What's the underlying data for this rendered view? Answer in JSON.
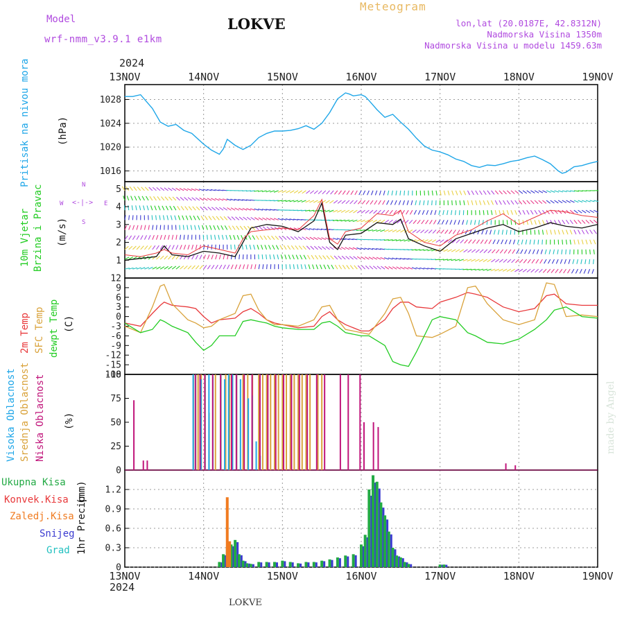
{
  "header": {
    "model_label": "Model",
    "model_name": "wrf-nmm_v3.9.1 e1km",
    "station": "LOKVE",
    "meteogram_label": "Meteogram",
    "lonlat": "lon,lat (20.0187E, 42.8312N)",
    "altitude": "Nadmorska Visina 1350m",
    "model_altitude": "Nadmorska Visina u modelu 1459.63m",
    "year_top": "2024",
    "year_bottom": "2024",
    "footer_station": "LOKVE",
    "credit": "made by Angel"
  },
  "colors": {
    "pressure": "#1ea6e8",
    "temp2m": "#e8383a",
    "sfc": "#d9a23a",
    "dew": "#22cc22",
    "high_cloud": "#1ea6e8",
    "mid_cloud": "#d9a23a",
    "low_cloud": "#c0147a",
    "total_precip": "#22aa44",
    "conv_precip": "#e8383a",
    "frz_precip": "#f07b20",
    "snow": "#3a3ad0",
    "hail": "#22c0c0",
    "violet": "#b04adf",
    "title_orange": "#e8b860"
  },
  "x_axis": {
    "start": "13NOV",
    "days": [
      "13NOV",
      "14NOV",
      "15NOV",
      "16NOV",
      "17NOV",
      "18NOV",
      "19NOV"
    ]
  },
  "chart_data": [
    {
      "type": "line",
      "panel": "pressure",
      "ylabel": "Pritisak na nivou mora",
      "unit": "(hPa)",
      "yticks": [
        1016,
        1020,
        1024,
        1028
      ],
      "ylim": [
        1014.2,
        1030.5
      ],
      "x": [
        0,
        0.1,
        0.2,
        0.35,
        0.45,
        0.55,
        0.65,
        0.75,
        0.85,
        1.0,
        1.1,
        1.2,
        1.25,
        1.3,
        1.4,
        1.5,
        1.6,
        1.7,
        1.8,
        1.9,
        2.0,
        2.1,
        2.2,
        2.3,
        2.4,
        2.5,
        2.6,
        2.7,
        2.8,
        2.85,
        2.9,
        3.0,
        3.05,
        3.1,
        3.2,
        3.3,
        3.4,
        3.5,
        3.6,
        3.7,
        3.8,
        3.9,
        4.0,
        4.1,
        4.2,
        4.3,
        4.4,
        4.5,
        4.6,
        4.7,
        4.8,
        4.9,
        5.0,
        5.1,
        5.2,
        5.3,
        5.4,
        5.5,
        5.55,
        5.6,
        5.7,
        5.8,
        5.9,
        6.0
      ],
      "series": [
        {
          "values": [
            1028.5,
            1028.5,
            1028.8,
            1026.5,
            1024.2,
            1023.5,
            1023.8,
            1022.8,
            1022.3,
            1020.5,
            1019.5,
            1018.8,
            1019.7,
            1021.3,
            1020.3,
            1019.6,
            1020.3,
            1021.6,
            1022.3,
            1022.7,
            1022.7,
            1022.8,
            1023.1,
            1023.6,
            1023.0,
            1024.0,
            1025.8,
            1028.1,
            1029.1,
            1028.9,
            1028.6,
            1028.8,
            1028.5,
            1027.8,
            1026.3,
            1025.0,
            1025.5,
            1024.2,
            1023.0,
            1021.5,
            1020.2,
            1019.5,
            1019.2,
            1018.7,
            1018.0,
            1017.6,
            1016.9,
            1016.6,
            1017.0,
            1016.9,
            1017.2,
            1017.6,
            1017.8,
            1018.2,
            1018.5,
            1017.9,
            1017.2,
            1016.0,
            1015.6,
            1015.8,
            1016.7,
            1016.9,
            1017.3,
            1017.6
          ]
        }
      ]
    },
    {
      "type": "line",
      "panel": "wind",
      "ylabel": [
        "10m Vjetar",
        "Brzina i Pravac"
      ],
      "unit": "(m/s)",
      "compass": [
        "N",
        "W",
        "E",
        "S"
      ],
      "yticks": [
        1,
        2,
        3,
        4,
        5
      ],
      "ylim": [
        0,
        5.4
      ],
      "x": [
        0,
        0.2,
        0.4,
        0.5,
        0.6,
        0.8,
        1.0,
        1.2,
        1.4,
        1.5,
        1.6,
        1.8,
        2.0,
        2.2,
        2.4,
        2.5,
        2.6,
        2.7,
        2.8,
        3.0,
        3.2,
        3.4,
        3.5,
        3.6,
        3.8,
        4.0,
        4.2,
        4.4,
        4.6,
        4.8,
        5.0,
        5.2,
        5.4,
        5.6,
        5.8,
        6.0
      ],
      "series": [
        {
          "name": "speed",
          "values": [
            1.0,
            1.1,
            1.2,
            1.8,
            1.3,
            1.2,
            1.5,
            1.4,
            1.2,
            2.0,
            2.8,
            3.0,
            2.9,
            2.6,
            3.2,
            4.2,
            2.0,
            1.6,
            2.4,
            2.5,
            3.1,
            3.0,
            3.3,
            2.2,
            1.8,
            1.5,
            2.2,
            2.5,
            2.8,
            3.0,
            2.6,
            2.8,
            3.1,
            2.9,
            2.8,
            3.0
          ]
        },
        {
          "name": "gust",
          "values": [
            1.3,
            1.2,
            1.4,
            1.6,
            1.4,
            1.3,
            1.8,
            1.6,
            1.4,
            2.2,
            2.6,
            2.7,
            2.8,
            2.7,
            3.5,
            4.4,
            2.2,
            1.9,
            2.6,
            2.8,
            3.6,
            3.5,
            3.8,
            2.6,
            2.0,
            1.8,
            2.4,
            2.7,
            3.2,
            3.6,
            3.0,
            3.4,
            3.8,
            3.7,
            3.5,
            3.4
          ]
        }
      ]
    },
    {
      "type": "line",
      "panel": "temperature",
      "ylabel": [
        "2m Temp",
        "SFC Temp",
        "dewpt Temp"
      ],
      "unit": "(C)",
      "yticks": [
        -18,
        -15,
        -12,
        -9,
        -6,
        -3,
        0,
        3,
        6,
        9,
        12
      ],
      "ylim": [
        -18,
        12
      ],
      "x": [
        0,
        0.2,
        0.35,
        0.45,
        0.5,
        0.6,
        0.8,
        0.9,
        1.0,
        1.1,
        1.2,
        1.4,
        1.5,
        1.6,
        1.7,
        1.8,
        1.9,
        2.0,
        2.2,
        2.4,
        2.5,
        2.6,
        2.7,
        2.8,
        3.0,
        3.1,
        3.3,
        3.4,
        3.5,
        3.6,
        3.7,
        3.9,
        4.0,
        4.2,
        4.35,
        4.45,
        4.6,
        4.8,
        5.0,
        5.2,
        5.35,
        5.45,
        5.6,
        5.8,
        6.0
      ],
      "series": [
        {
          "name": "2m Temp",
          "values": [
            -2,
            -3,
            1,
            3.5,
            4.5,
            3.5,
            3,
            2.5,
            0,
            -2,
            -1,
            -0.5,
            1.5,
            2.5,
            1,
            -1,
            -2,
            -2.5,
            -3.5,
            -3,
            0,
            1.5,
            -1,
            -2.5,
            -4.5,
            -4.5,
            -1,
            2.5,
            4.5,
            4.5,
            3,
            2.5,
            4.5,
            6,
            7.5,
            7,
            6,
            3,
            1.5,
            2.5,
            6.5,
            7,
            4,
            3.5,
            3.5
          ]
        },
        {
          "name": "SFC Temp",
          "values": [
            -3,
            -5,
            3,
            9.5,
            10,
            4,
            -1,
            -2,
            -3.5,
            -3,
            -1,
            1,
            6.5,
            7,
            2,
            -1,
            -2.5,
            -2.5,
            -3,
            -1,
            3,
            3.5,
            -1,
            -4,
            -5,
            -5.5,
            1,
            5.5,
            6,
            1,
            -6,
            -6.5,
            -5.5,
            -3,
            9,
            9.5,
            4,
            -1,
            -2.5,
            -1,
            10.5,
            10,
            0,
            0.5,
            0
          ]
        },
        {
          "name": "dewpt Temp",
          "values": [
            -2,
            -5,
            -4,
            -1,
            -1.5,
            -3,
            -5,
            -8,
            -10.5,
            -9,
            -6,
            -6,
            -1.5,
            -1,
            -1.5,
            -2,
            -3,
            -3.5,
            -4,
            -4,
            -2,
            -1.5,
            -3,
            -5,
            -6,
            -6,
            -9,
            -14,
            -15,
            -15.5,
            -11,
            -1,
            0,
            -1,
            -5,
            -6,
            -8,
            -8.5,
            -7,
            -4,
            -1,
            2,
            3,
            0,
            -0.5
          ]
        }
      ]
    },
    {
      "type": "bar",
      "panel": "clouds",
      "ylabel": [
        "Visoka Oblacnost",
        "Srednja Oblacnost",
        "Niska Oblacnost"
      ],
      "unit": "(%)",
      "yticks": [
        0,
        25,
        50,
        75,
        100
      ],
      "ylim": [
        0,
        100
      ],
      "high": [
        [
          0.85,
          100
        ],
        [
          0.88,
          100
        ],
        [
          0.95,
          95
        ],
        [
          1.0,
          100
        ],
        [
          1.05,
          100
        ],
        [
          1.1,
          98
        ],
        [
          1.2,
          100
        ],
        [
          1.25,
          95
        ],
        [
          1.3,
          100
        ],
        [
          1.35,
          100
        ],
        [
          1.4,
          100
        ],
        [
          1.45,
          95
        ],
        [
          1.55,
          75
        ],
        [
          1.6,
          78
        ],
        [
          1.65,
          30
        ],
        [
          1.7,
          15
        ]
      ],
      "mid": [
        [
          0.87,
          100
        ],
        [
          0.9,
          100
        ],
        [
          0.93,
          100
        ],
        [
          0.97,
          100
        ],
        [
          1.02,
          100
        ],
        [
          1.07,
          60
        ],
        [
          1.15,
          100
        ],
        [
          1.22,
          100
        ],
        [
          1.28,
          100
        ],
        [
          1.33,
          100
        ],
        [
          1.42,
          100
        ],
        [
          1.5,
          100
        ],
        [
          1.56,
          100
        ],
        [
          1.62,
          100
        ],
        [
          1.7,
          100
        ],
        [
          1.75,
          100
        ],
        [
          1.8,
          100
        ],
        [
          1.85,
          100
        ],
        [
          1.9,
          100
        ],
        [
          1.95,
          100
        ],
        [
          2.0,
          100
        ],
        [
          2.05,
          100
        ],
        [
          2.1,
          100
        ],
        [
          2.15,
          100
        ],
        [
          2.2,
          100
        ],
        [
          2.25,
          100
        ],
        [
          2.3,
          100
        ],
        [
          2.35,
          100
        ],
        [
          2.45,
          100
        ],
        [
          2.5,
          100
        ]
      ],
      "low": [
        [
          0.08,
          73
        ],
        [
          0.2,
          10
        ],
        [
          0.25,
          10
        ],
        [
          0.86,
          100
        ],
        [
          0.92,
          100
        ],
        [
          0.98,
          100
        ],
        [
          1.08,
          100
        ],
        [
          1.18,
          100
        ],
        [
          1.32,
          100
        ],
        [
          1.38,
          100
        ],
        [
          1.48,
          100
        ],
        [
          1.58,
          100
        ],
        [
          1.68,
          100
        ],
        [
          1.78,
          100
        ],
        [
          1.88,
          100
        ],
        [
          1.98,
          100
        ],
        [
          2.08,
          100
        ],
        [
          2.18,
          100
        ],
        [
          2.28,
          100
        ],
        [
          2.4,
          100
        ],
        [
          2.5,
          100
        ],
        [
          2.7,
          100
        ],
        [
          2.8,
          100
        ],
        [
          2.95,
          100
        ],
        [
          3.0,
          50
        ],
        [
          3.12,
          50
        ],
        [
          3.18,
          45
        ],
        [
          4.8,
          7
        ],
        [
          4.92,
          5
        ]
      ]
    },
    {
      "type": "bar",
      "panel": "precip",
      "ylabel": "1hr Precip",
      "unit": "(mm)",
      "yticks": [
        0,
        0.3,
        0.6,
        0.9,
        1.2
      ],
      "ylim": [
        0,
        1.5
      ],
      "legend": [
        "Ukupna Kisa",
        "Konvek.Kisa",
        "Zaledj.Kisa",
        "Snijeg",
        "Grad"
      ],
      "total": [
        [
          1.2,
          0.08
        ],
        [
          1.25,
          0.2
        ],
        [
          1.3,
          0.28
        ],
        [
          1.35,
          0.35
        ],
        [
          1.4,
          0.42
        ],
        [
          1.45,
          0.2
        ],
        [
          1.5,
          0.1
        ],
        [
          1.55,
          0.06
        ],
        [
          1.6,
          0.05
        ],
        [
          1.7,
          0.08
        ],
        [
          1.8,
          0.08
        ],
        [
          1.9,
          0.08
        ],
        [
          2.0,
          0.1
        ],
        [
          2.1,
          0.08
        ],
        [
          2.2,
          0.06
        ],
        [
          2.3,
          0.08
        ],
        [
          2.4,
          0.08
        ],
        [
          2.5,
          0.1
        ],
        [
          2.6,
          0.12
        ],
        [
          2.7,
          0.15
        ],
        [
          2.8,
          0.18
        ],
        [
          2.9,
          0.2
        ],
        [
          3.0,
          0.35
        ],
        [
          3.05,
          0.5
        ],
        [
          3.1,
          1.2
        ],
        [
          3.15,
          1.42
        ],
        [
          3.2,
          1.32
        ],
        [
          3.25,
          1.0
        ],
        [
          3.3,
          0.8
        ],
        [
          3.35,
          0.55
        ],
        [
          3.4,
          0.3
        ],
        [
          3.45,
          0.18
        ],
        [
          3.5,
          0.15
        ],
        [
          3.55,
          0.08
        ],
        [
          3.6,
          0.05
        ],
        [
          4.0,
          0.04
        ],
        [
          4.05,
          0.04
        ]
      ],
      "freezing": [
        [
          1.3,
          1.08
        ],
        [
          1.33,
          0.4
        ]
      ]
    }
  ]
}
